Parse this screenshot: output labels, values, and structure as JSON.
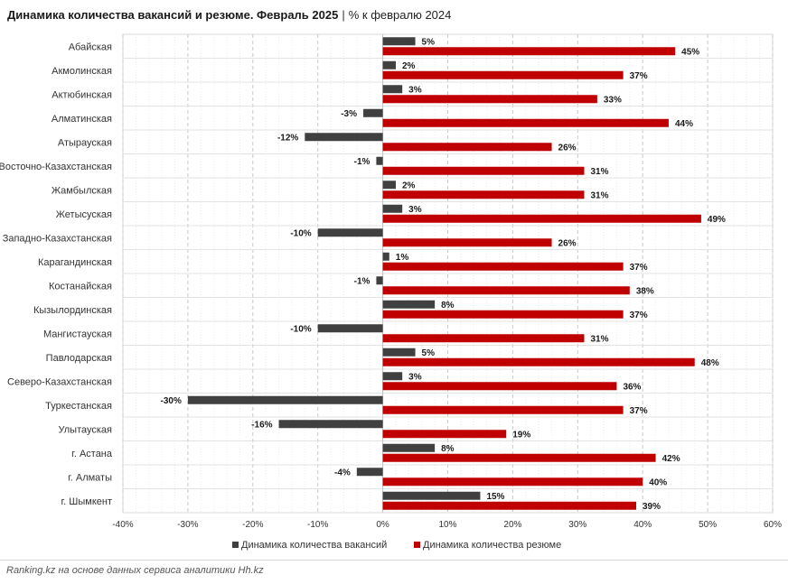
{
  "header": {
    "title": "Динамика количества вакансий и резюме. Февраль 2025",
    "separator": "|",
    "subtitle": "% к февралю 2024"
  },
  "chart_data": {
    "type": "bar",
    "orientation": "horizontal",
    "title": "Динамика количества вакансий и резюме. Февраль 2025",
    "subtitle": "% к февралю 2024",
    "categories": [
      "Абайская",
      "Акмолинская",
      "Актюбинская",
      "Алматинская",
      "Атырауская",
      "Восточно-Казахстанская",
      "Жамбылская",
      "Жетысуская",
      "Западно-Казахстанская",
      "Карагандинская",
      "Костанайская",
      "Кызылординская",
      "Мангистауская",
      "Павлодарская",
      "Северо-Казахстанская",
      "Туркестанская",
      "Улытауская",
      "г. Астана",
      "г. Алматы",
      "г. Шымкент"
    ],
    "series": [
      {
        "name": "Динамика количества вакансий",
        "color": "#404040",
        "values": [
          5,
          2,
          3,
          -3,
          -12,
          -1,
          2,
          3,
          -10,
          1,
          -1,
          8,
          -10,
          5,
          3,
          -30,
          -16,
          8,
          -4,
          15
        ]
      },
      {
        "name": "Динамика количества резюме",
        "color": "#c00000",
        "values": [
          45,
          37,
          33,
          44,
          26,
          31,
          31,
          49,
          26,
          37,
          38,
          37,
          31,
          48,
          36,
          37,
          19,
          42,
          40,
          39
        ]
      }
    ],
    "xlim": [
      -40,
      60
    ],
    "xticks": [
      -40,
      -30,
      -20,
      -10,
      0,
      10,
      20,
      30,
      40,
      50,
      60
    ],
    "tick_format": "{v}%",
    "value_format": "{v}%",
    "grid": true,
    "legend_position": "bottom"
  },
  "footer": {
    "source": "Ranking.kz на основе данных сервиса аналитики Hh.kz"
  }
}
